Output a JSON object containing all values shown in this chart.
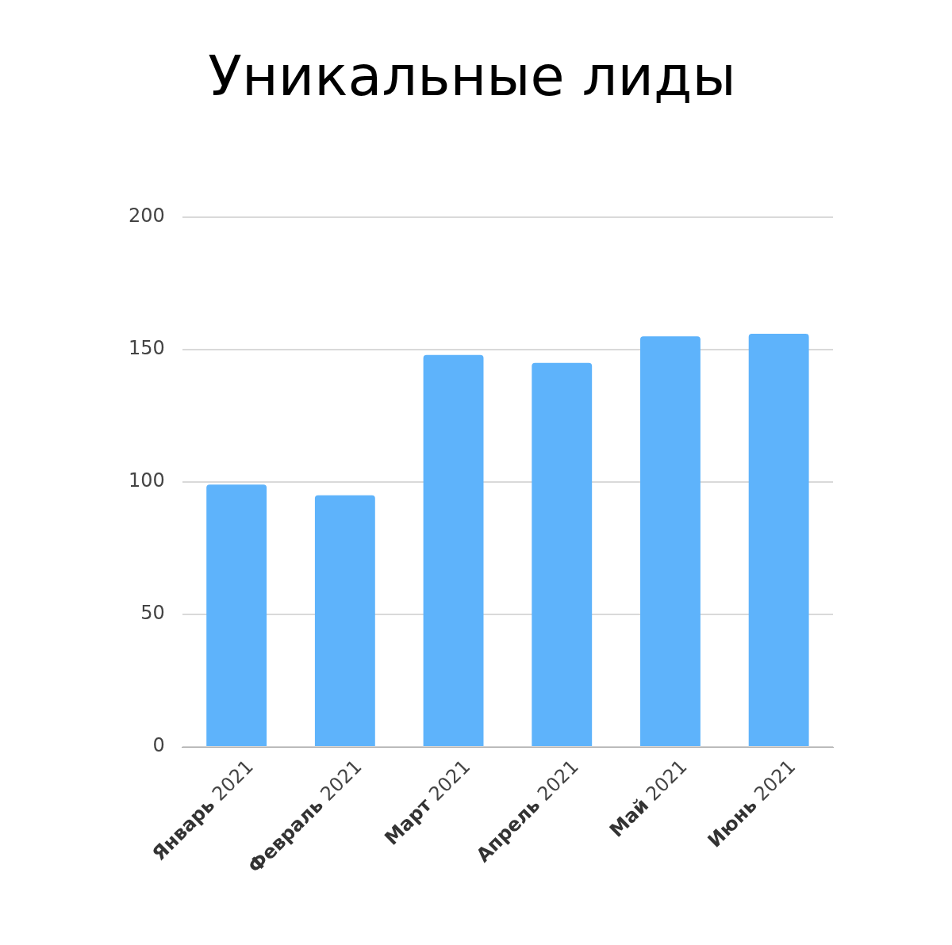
{
  "chart_data": {
    "type": "bar",
    "title": "Уникальные лиды",
    "categories": [
      "Январь 2021",
      "Февраль 2021",
      "Март 2021",
      "Апрель 2021",
      "Май 2021",
      "Июнь 2021"
    ],
    "values": [
      99,
      95,
      148,
      145,
      155,
      156
    ],
    "color": "#5eb3fb",
    "ylim": [
      0,
      200
    ],
    "yticks": [
      0,
      50,
      100,
      150,
      200
    ],
    "grid": "y"
  }
}
